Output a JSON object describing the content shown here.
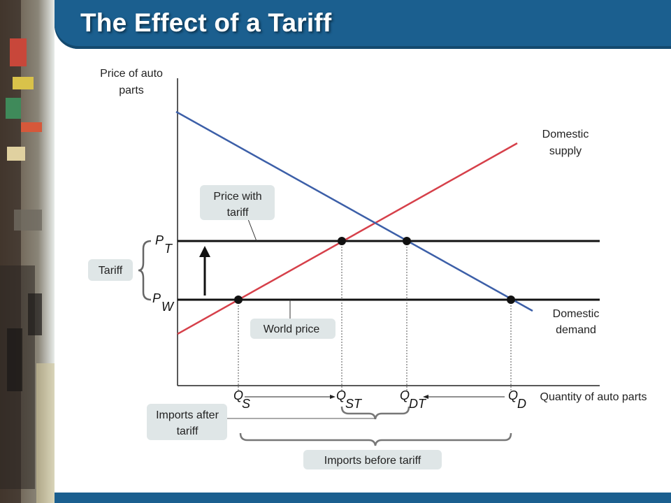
{
  "title": "The Effect of a Tariff",
  "axes": {
    "y_label_line1": "Price of auto",
    "y_label_line2": "parts",
    "x_label": "Quantity of auto parts"
  },
  "curves": {
    "supply_line1": "Domestic",
    "supply_line2": "supply",
    "demand_line1": "Domestic",
    "demand_line2": "demand",
    "supply_color": "#d6404a",
    "demand_color": "#3c5fa8"
  },
  "prices": {
    "pt_main": "P",
    "pt_sub": "T",
    "pw_main": "P",
    "pw_sub": "W"
  },
  "quantities": {
    "qs_main": "Q",
    "qs_sub": "S",
    "qst_main": "Q",
    "qst_sub": "ST",
    "qdt_main": "Q",
    "qdt_sub": "DT",
    "qd_main": "Q",
    "qd_sub": "D"
  },
  "callouts": {
    "price_with_tariff_line1": "Price with",
    "price_with_tariff_line2": "tariff",
    "tariff": "Tariff",
    "world_price": "World price",
    "imports_after_line1": "Imports after",
    "imports_after_line2": "tariff",
    "imports_before": "Imports before tariff"
  }
}
